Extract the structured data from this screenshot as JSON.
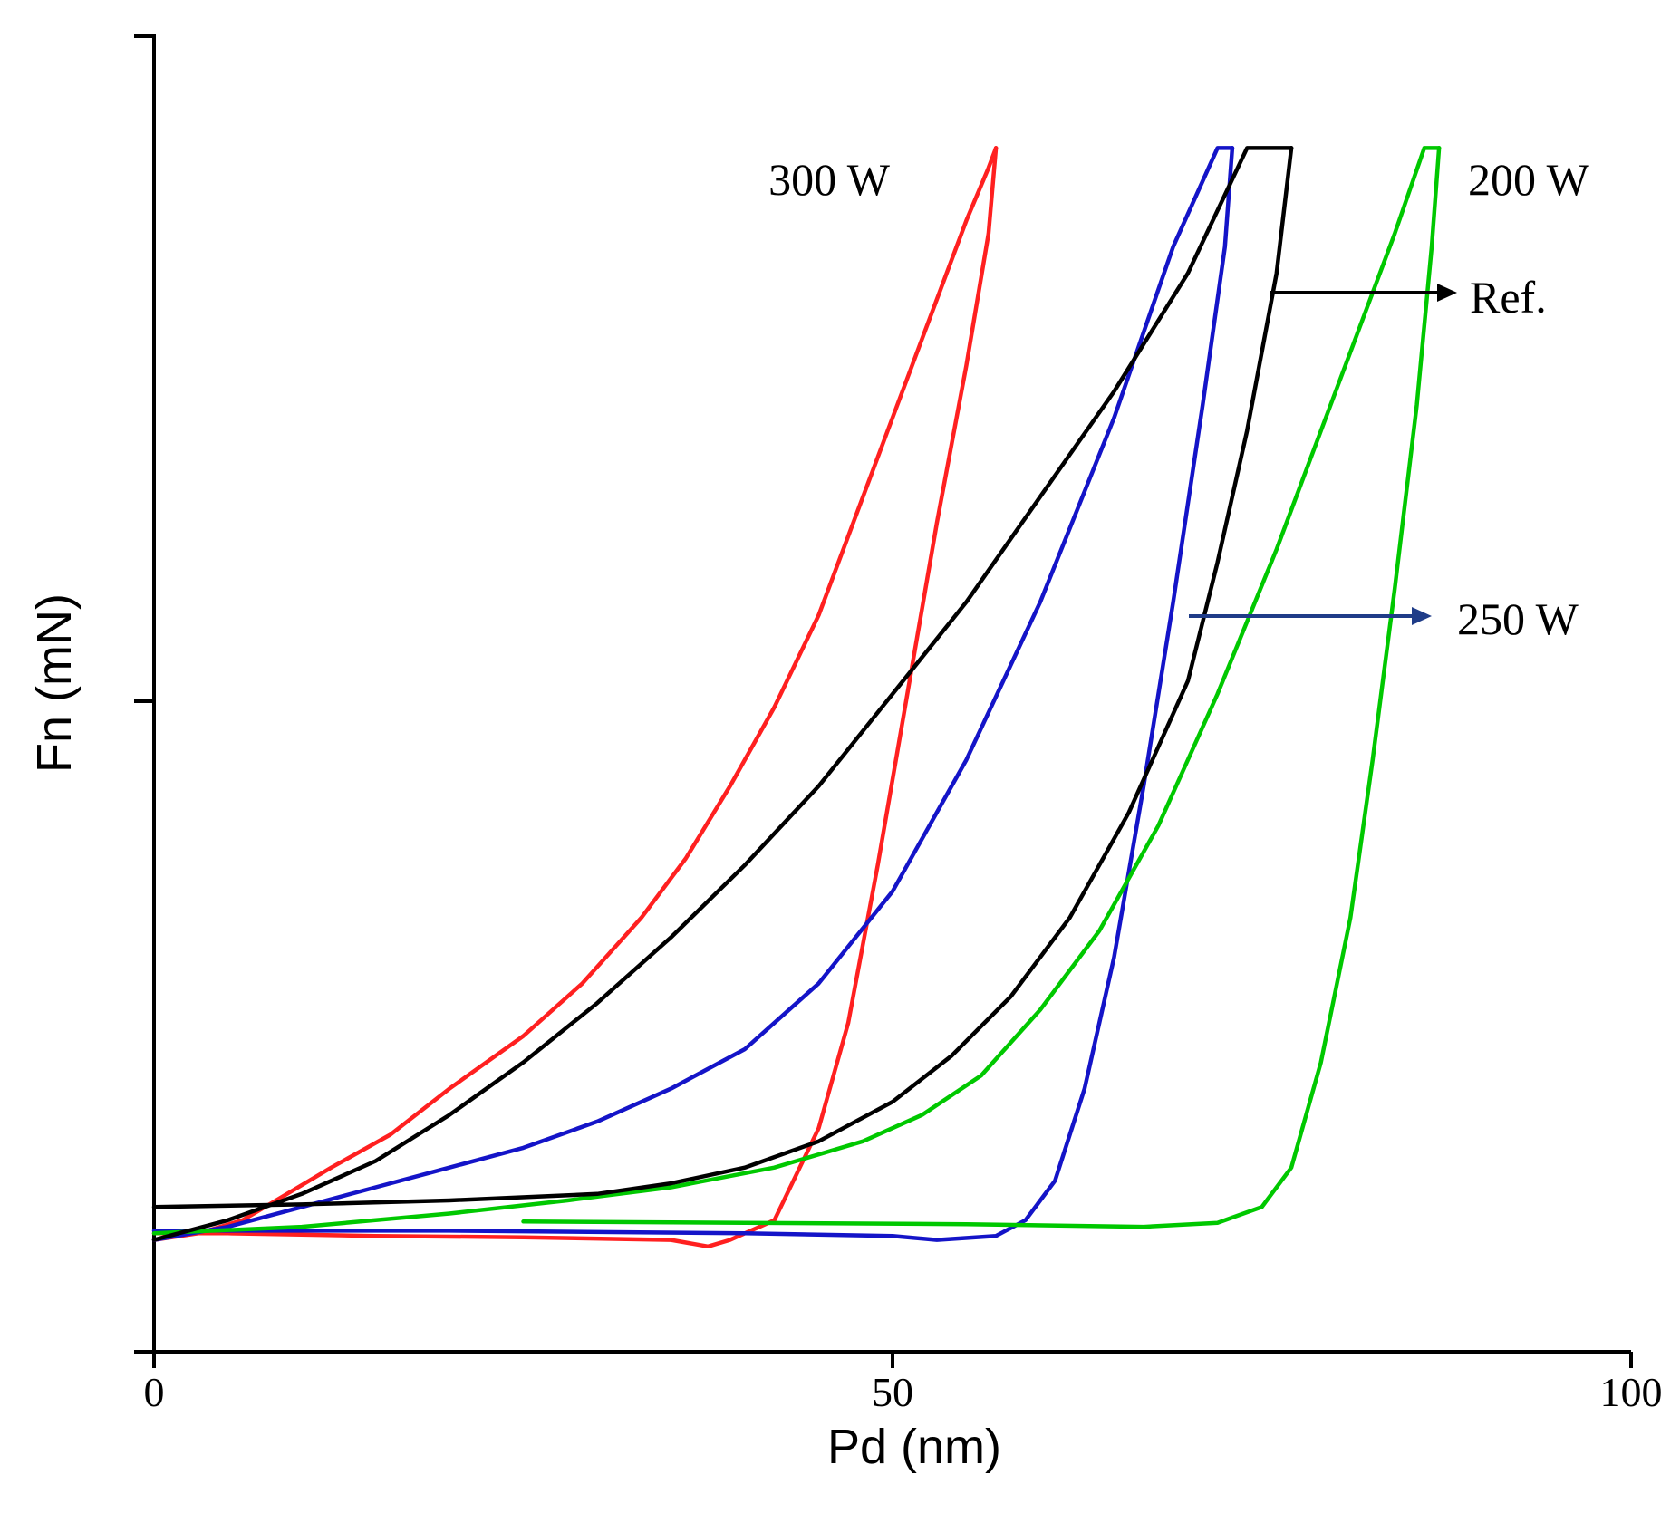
{
  "chart_data": {
    "type": "line",
    "title": "",
    "xlabel": "Pd (nm)",
    "ylabel": "Fn (mN)",
    "xlim": [
      0,
      100
    ],
    "ylim": [
      0,
      1
    ],
    "x_ticks": [
      0,
      50,
      100
    ],
    "x_tick_labels": [
      "0",
      "50",
      "100"
    ],
    "y_ticks": [
      0,
      0.5,
      1
    ],
    "grid": false,
    "legend": "none",
    "series": [
      {
        "color": "#ff2020",
        "loading": [
          [
            0,
            0.085
          ],
          [
            3,
            0.09
          ],
          [
            6,
            0.1
          ],
          [
            9,
            0.12
          ],
          [
            12,
            0.14
          ],
          [
            16,
            0.165
          ],
          [
            20,
            0.2
          ],
          [
            25,
            0.24
          ],
          [
            29,
            0.28
          ],
          [
            33,
            0.33
          ],
          [
            36,
            0.375
          ],
          [
            39,
            0.43
          ],
          [
            42,
            0.49
          ],
          [
            45,
            0.56
          ],
          [
            48,
            0.65
          ],
          [
            51,
            0.74
          ],
          [
            53,
            0.8
          ],
          [
            55,
            0.86
          ],
          [
            56.5,
            0.9
          ],
          [
            57,
            0.915
          ]
        ],
        "unloading": [
          [
            57,
            0.915
          ],
          [
            56.5,
            0.85
          ],
          [
            55,
            0.75
          ],
          [
            53,
            0.63
          ],
          [
            51,
            0.5
          ],
          [
            49,
            0.37
          ],
          [
            47,
            0.25
          ],
          [
            45,
            0.17
          ],
          [
            42,
            0.1
          ],
          [
            39,
            0.085
          ],
          [
            37.5,
            0.08
          ],
          [
            35,
            0.085
          ],
          [
            25,
            0.087
          ],
          [
            15,
            0.088
          ],
          [
            5,
            0.09
          ],
          [
            0,
            0.09
          ]
        ]
      },
      {
        "color": "#1414c8",
        "loading": [
          [
            0,
            0.085
          ],
          [
            5,
            0.095
          ],
          [
            10,
            0.11
          ],
          [
            15,
            0.125
          ],
          [
            20,
            0.14
          ],
          [
            25,
            0.155
          ],
          [
            30,
            0.175
          ],
          [
            35,
            0.2
          ],
          [
            40,
            0.23
          ],
          [
            45,
            0.28
          ],
          [
            50,
            0.35
          ],
          [
            55,
            0.45
          ],
          [
            60,
            0.57
          ],
          [
            65,
            0.71
          ],
          [
            69,
            0.84
          ],
          [
            72,
            0.915
          ],
          [
            73,
            0.915
          ]
        ],
        "unloading": [
          [
            73,
            0.915
          ],
          [
            72.5,
            0.84
          ],
          [
            71,
            0.72
          ],
          [
            69,
            0.57
          ],
          [
            67,
            0.43
          ],
          [
            65,
            0.3
          ],
          [
            63,
            0.2
          ],
          [
            61,
            0.13
          ],
          [
            59,
            0.1
          ],
          [
            57,
            0.088
          ],
          [
            53,
            0.085
          ],
          [
            50,
            0.088
          ],
          [
            40,
            0.09
          ],
          [
            20,
            0.092
          ],
          [
            0,
            0.092
          ]
        ]
      },
      {
        "color": "#00c800",
        "loading": [
          [
            0,
            0.09
          ],
          [
            10,
            0.095
          ],
          [
            20,
            0.105
          ],
          [
            28,
            0.115
          ],
          [
            35,
            0.125
          ],
          [
            42,
            0.14
          ],
          [
            48,
            0.16
          ],
          [
            52,
            0.18
          ],
          [
            56,
            0.21
          ],
          [
            60,
            0.26
          ],
          [
            64,
            0.32
          ],
          [
            68,
            0.4
          ],
          [
            72,
            0.5
          ],
          [
            76,
            0.61
          ],
          [
            80,
            0.73
          ],
          [
            84,
            0.85
          ],
          [
            86,
            0.915
          ],
          [
            87,
            0.915
          ]
        ],
        "unloading": [
          [
            87,
            0.915
          ],
          [
            86.5,
            0.84
          ],
          [
            85.5,
            0.72
          ],
          [
            84,
            0.58
          ],
          [
            82.5,
            0.45
          ],
          [
            81,
            0.33
          ],
          [
            79,
            0.22
          ],
          [
            77,
            0.14
          ],
          [
            75,
            0.11
          ],
          [
            72,
            0.098
          ],
          [
            67,
            0.095
          ],
          [
            55,
            0.097
          ],
          [
            40,
            0.098
          ],
          [
            25,
            0.099
          ]
        ]
      },
      {
        "color": "#000000",
        "loading": [
          [
            0,
            0.085
          ],
          [
            5,
            0.1
          ],
          [
            10,
            0.12
          ],
          [
            15,
            0.145
          ],
          [
            20,
            0.18
          ],
          [
            25,
            0.22
          ],
          [
            30,
            0.265
          ],
          [
            35,
            0.315
          ],
          [
            40,
            0.37
          ],
          [
            45,
            0.43
          ],
          [
            50,
            0.5
          ],
          [
            55,
            0.57
          ],
          [
            60,
            0.65
          ],
          [
            65,
            0.73
          ],
          [
            70,
            0.82
          ],
          [
            74,
            0.915
          ],
          [
            77,
            0.915
          ]
        ],
        "unloading": [
          [
            77,
            0.915
          ],
          [
            76,
            0.82
          ],
          [
            74,
            0.7
          ],
          [
            72,
            0.6
          ],
          [
            70,
            0.51
          ],
          [
            66,
            0.41
          ],
          [
            62,
            0.33
          ],
          [
            58,
            0.27
          ],
          [
            54,
            0.225
          ],
          [
            50,
            0.19
          ],
          [
            45,
            0.16
          ],
          [
            40,
            0.14
          ],
          [
            35,
            0.128
          ],
          [
            30,
            0.12
          ],
          [
            20,
            0.115
          ],
          [
            10,
            0.112
          ],
          [
            0,
            0.11
          ]
        ]
      }
    ],
    "annotations": [
      {
        "text": "300 W"
      },
      {
        "text": "200 W"
      },
      {
        "text": "Ref."
      },
      {
        "text": "250 W"
      }
    ],
    "annotation_arrows": [
      {
        "color": "#000000"
      },
      {
        "color": "#1f3c88"
      }
    ]
  }
}
